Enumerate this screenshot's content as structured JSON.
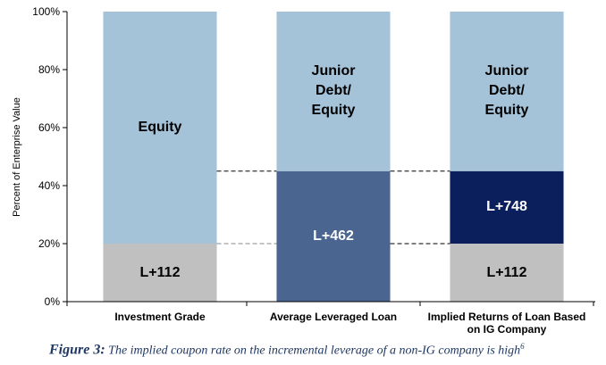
{
  "chart_data": {
    "type": "stacked-bar",
    "y_label": "Percent of Enterprise Value",
    "categories": [
      "Investment Grade",
      "Average Leveraged Loan",
      "Implied Returns of Loan Based on IG Company"
    ],
    "series": [
      {
        "color": "#c0c0c0",
        "values": [
          20,
          null,
          20
        ],
        "segment_labels": [
          "L+112",
          null,
          "L+112"
        ],
        "label_color": "#000000"
      },
      {
        "color": "#4a6590",
        "values": [
          null,
          45,
          null
        ],
        "segment_labels": [
          null,
          "L+462",
          null
        ],
        "label_color": "#ffffff"
      },
      {
        "color": "#0b1f5c",
        "values": [
          null,
          null,
          25
        ],
        "segment_labels": [
          null,
          null,
          "L+748"
        ],
        "label_color": "#ffffff"
      },
      {
        "color": "#a4c3d9",
        "values": [
          80,
          55,
          55
        ],
        "segment_labels": [
          "Equity",
          "Junior Debt/ Equity",
          "Junior Debt/ Equity"
        ],
        "label_color": "#000000"
      }
    ],
    "ylim": [
      0,
      100
    ],
    "yticks": [
      {
        "value": 0,
        "label": "0%"
      },
      {
        "value": 20,
        "label": "20%"
      },
      {
        "value": 40,
        "label": "40%"
      },
      {
        "value": 60,
        "label": "60%"
      },
      {
        "value": 80,
        "label": "80%"
      },
      {
        "value": 100,
        "label": "100%"
      }
    ],
    "caption": {
      "label": "Figure 3:",
      "text": "The implied coupon rate on the incremental leverage of a non-IG company is high",
      "footnote": "6"
    }
  }
}
